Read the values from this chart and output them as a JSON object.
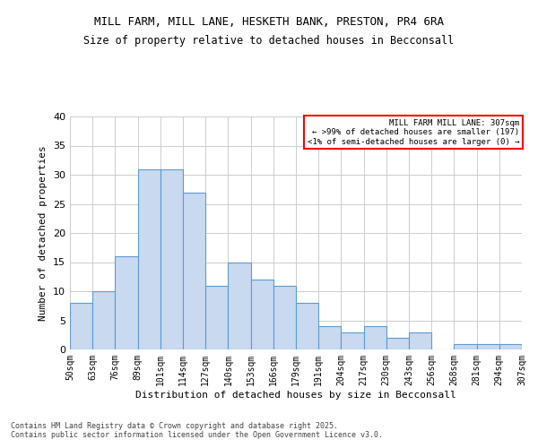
{
  "title_line1": "MILL FARM, MILL LANE, HESKETH BANK, PRESTON, PR4 6RA",
  "title_line2": "Size of property relative to detached houses in Becconsall",
  "xlabel": "Distribution of detached houses by size in Becconsall",
  "ylabel": "Number of detached properties",
  "bar_values": [
    8,
    10,
    16,
    31,
    31,
    27,
    11,
    15,
    12,
    11,
    8,
    4,
    3,
    4,
    2,
    3,
    0,
    1,
    1,
    1
  ],
  "categories": [
    "50sqm",
    "63sqm",
    "76sqm",
    "89sqm",
    "101sqm",
    "114sqm",
    "127sqm",
    "140sqm",
    "153sqm",
    "166sqm",
    "179sqm",
    "191sqm",
    "204sqm",
    "217sqm",
    "230sqm",
    "243sqm",
    "256sqm",
    "268sqm",
    "281sqm",
    "294sqm",
    "307sqm"
  ],
  "bar_color": "#c8d9f0",
  "bar_edge_color": "#5b9bd5",
  "background_color": "#ffffff",
  "grid_color": "#cccccc",
  "annotation_box_text": "MILL FARM MILL LANE: 307sqm\n← >99% of detached houses are smaller (197)\n<1% of semi-detached houses are larger (0) →",
  "footer_text": "Contains HM Land Registry data © Crown copyright and database right 2025.\nContains public sector information licensed under the Open Government Licence v3.0.",
  "ylim": [
    0,
    40
  ],
  "yticks": [
    0,
    5,
    10,
    15,
    20,
    25,
    30,
    35,
    40
  ]
}
